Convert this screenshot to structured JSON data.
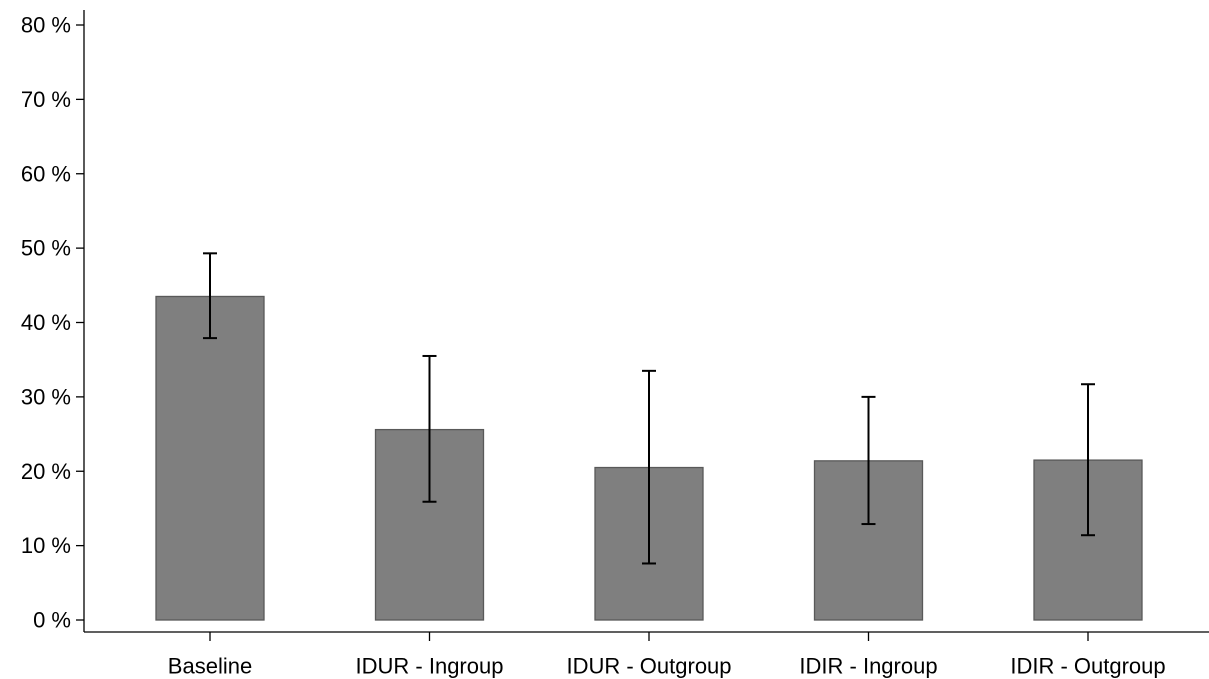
{
  "chart_data": {
    "type": "bar",
    "title": "",
    "xlabel": "",
    "ylabel": "",
    "categories": [
      "Baseline",
      "IDUR - Ingroup",
      "IDUR - Outgroup",
      "IDIR - Ingroup",
      "IDIR - Outgroup"
    ],
    "values": [
      43.5,
      25.6,
      20.5,
      21.4,
      21.5
    ],
    "error_low": [
      37.9,
      15.9,
      7.6,
      12.9,
      11.4
    ],
    "error_high": [
      49.3,
      35.5,
      33.5,
      30.0,
      31.7
    ],
    "ylim": [
      0,
      80
    ],
    "yticks": [
      0,
      10,
      20,
      30,
      40,
      50,
      60,
      70,
      80
    ],
    "ytick_labels": [
      "0 %",
      "10 %",
      "20 %",
      "30 %",
      "40 %",
      "50 %",
      "60 %",
      "70 %",
      "80 %"
    ],
    "grid": false,
    "legend": "none",
    "colors": {
      "bar_fill": "#7f7f7f",
      "bar_edge": "#595959",
      "error_bar": "#000000",
      "axis": "#000000"
    }
  }
}
